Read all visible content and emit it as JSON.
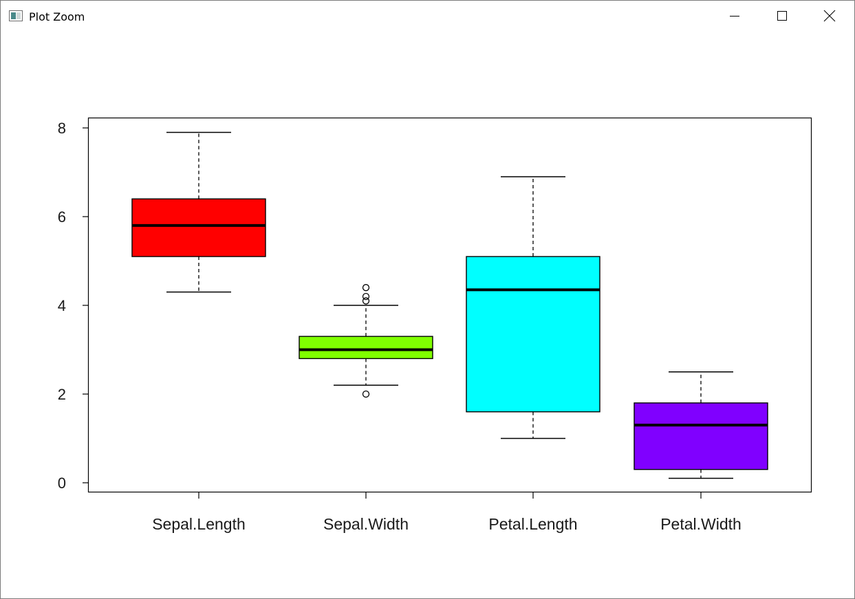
{
  "window": {
    "title": "Plot Zoom",
    "icon": "plot-window-icon",
    "controls": {
      "minimize": "minimize-icon",
      "maximize": "maximize-icon",
      "close": "close-icon"
    }
  },
  "chart_data": {
    "type": "boxplot",
    "ylim": [
      0,
      8
    ],
    "yticks": [
      "0",
      "2",
      "4",
      "6",
      "8"
    ],
    "categories": [
      "Sepal.Length",
      "Sepal.Width",
      "Petal.Length",
      "Petal.Width"
    ],
    "boxes": [
      {
        "name": "Sepal.Length",
        "color": "#ff0000",
        "min": 4.3,
        "q1": 5.1,
        "median": 5.8,
        "q3": 6.4,
        "max": 7.9,
        "outliers": []
      },
      {
        "name": "Sepal.Width",
        "color": "#80ff00",
        "min": 2.2,
        "q1": 2.8,
        "median": 3.0,
        "q3": 3.3,
        "max": 4.0,
        "outliers": [
          4.1,
          4.2,
          4.4,
          2.0
        ]
      },
      {
        "name": "Petal.Length",
        "color": "#00ffff",
        "min": 1.0,
        "q1": 1.6,
        "median": 4.35,
        "q3": 5.1,
        "max": 6.9,
        "outliers": []
      },
      {
        "name": "Petal.Width",
        "color": "#8000ff",
        "min": 0.1,
        "q1": 0.3,
        "median": 1.3,
        "q3": 1.8,
        "max": 2.5,
        "outliers": []
      }
    ],
    "title": "",
    "xlabel": "",
    "ylabel": "",
    "grid": false
  }
}
